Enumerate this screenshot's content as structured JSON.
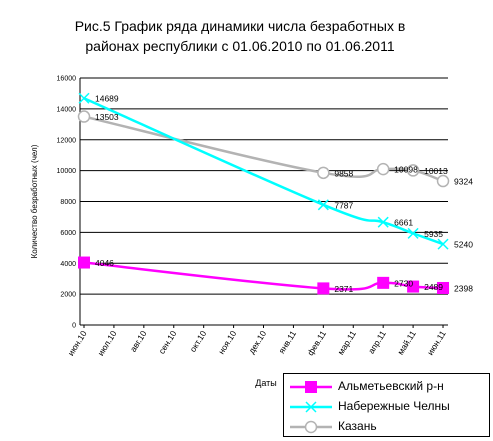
{
  "chart_data": {
    "type": "line",
    "title": "Рис.5 График ряда динамики числа безработных в районах республики с 01.06.2010 по 01.06.2011",
    "title_lines": [
      "Рис.5 График ряда динамики числа безработных в",
      "районах республики с 01.06.2010 по 01.06.2011"
    ],
    "xlabel": "Даты",
    "ylabel": "Количество безработных (чел)",
    "ylim": [
      0,
      16000
    ],
    "yticks": [
      "0",
      "2000",
      "4000",
      "6000",
      "8000",
      "10000",
      "12000",
      "14000",
      "16000"
    ],
    "categories": [
      "июн.10",
      "июл.10",
      "авг.10",
      "сен.10",
      "окт.10",
      "ноя.10",
      "дек.10",
      "янв.11",
      "фев.11",
      "мар.11",
      "апр.11",
      "май.11",
      "июн.11"
    ],
    "grid": true,
    "legend": "bottom-right",
    "series": [
      {
        "name": "Альметьевский р-н",
        "color": "#ff00ff",
        "marker": "square",
        "points": [
          {
            "x": "июн.10",
            "y": 4046,
            "label": "4046"
          },
          {
            "x": "фев.11",
            "y": 2371,
            "label": "2371"
          },
          {
            "x": "апр.11",
            "y": 2730,
            "label": "2730"
          },
          {
            "x": "май.11",
            "y": 2489,
            "label": "2489"
          },
          {
            "x": "июн.11",
            "y": 2398,
            "label": "2398"
          }
        ]
      },
      {
        "name": "Набережные Челны",
        "color": "#00ffff",
        "marker": "x",
        "points": [
          {
            "x": "июн.10",
            "y": 14689,
            "label": "14689"
          },
          {
            "x": "фев.11",
            "y": 7787,
            "label": "7787"
          },
          {
            "x": "апр.11",
            "y": 6661,
            "label": "6661"
          },
          {
            "x": "май.11",
            "y": 5935,
            "label": "5935"
          },
          {
            "x": "июн.11",
            "y": 5240,
            "label": "5240"
          }
        ]
      },
      {
        "name": "Казань",
        "color": "#b3b3b3",
        "marker": "circle",
        "points": [
          {
            "x": "июн.10",
            "y": 13503,
            "label": "13503"
          },
          {
            "x": "фев.11",
            "y": 9858,
            "label": "9858"
          },
          {
            "x": "апр.11",
            "y": 10098,
            "label": "10098"
          },
          {
            "x": "май.11",
            "y": 10013,
            "label": "10013"
          },
          {
            "x": "июн.11",
            "y": 9324,
            "label": "9324"
          }
        ]
      }
    ]
  }
}
